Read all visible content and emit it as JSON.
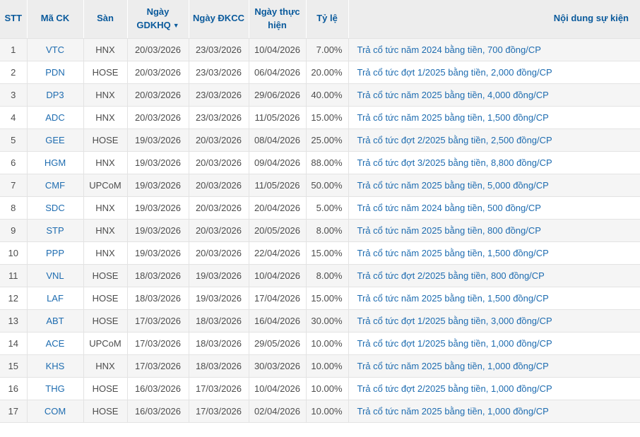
{
  "table": {
    "sort_icon": "▼",
    "columns": [
      {
        "key": "stt",
        "label": "STT",
        "sortable": false,
        "sorted": false
      },
      {
        "key": "ma_ck",
        "label": "Mã CK",
        "sortable": true,
        "sorted": false
      },
      {
        "key": "san",
        "label": "Sàn",
        "sortable": true,
        "sorted": false
      },
      {
        "key": "gdkhq",
        "label": "Ngày GDKHQ",
        "sortable": true,
        "sorted": true
      },
      {
        "key": "dkcc",
        "label": "Ngày ĐKCC",
        "sortable": true,
        "sorted": false
      },
      {
        "key": "thuc_hien",
        "label": "Ngày thực hiện",
        "sortable": true,
        "sorted": false
      },
      {
        "key": "ty_le",
        "label": "Tỷ lệ",
        "sortable": true,
        "sorted": false
      },
      {
        "key": "noi_dung",
        "label": "Nội dung sự kiện",
        "sortable": true,
        "sorted": false
      }
    ],
    "rows": [
      [
        "1",
        "VTC",
        "HNX",
        "20/03/2026",
        "23/03/2026",
        "10/04/2026",
        "7.00%",
        "Trả cổ tức năm 2024 bằng tiền, 700 đồng/CP"
      ],
      [
        "2",
        "PDN",
        "HOSE",
        "20/03/2026",
        "23/03/2026",
        "06/04/2026",
        "20.00%",
        "Trả cổ tức đợt 1/2025 bằng tiền, 2,000 đồng/CP"
      ],
      [
        "3",
        "DP3",
        "HNX",
        "20/03/2026",
        "23/03/2026",
        "29/06/2026",
        "40.00%",
        "Trả cổ tức năm 2025 bằng tiền, 4,000 đồng/CP"
      ],
      [
        "4",
        "ADC",
        "HNX",
        "20/03/2026",
        "23/03/2026",
        "11/05/2026",
        "15.00%",
        "Trả cổ tức năm 2025 bằng tiền, 1,500 đồng/CP"
      ],
      [
        "5",
        "GEE",
        "HOSE",
        "19/03/2026",
        "20/03/2026",
        "08/04/2026",
        "25.00%",
        "Trả cổ tức đợt 2/2025 bằng tiền, 2,500 đồng/CP"
      ],
      [
        "6",
        "HGM",
        "HNX",
        "19/03/2026",
        "20/03/2026",
        "09/04/2026",
        "88.00%",
        "Trả cổ tức đợt 3/2025 bằng tiền, 8,800 đồng/CP"
      ],
      [
        "7",
        "CMF",
        "UPCoM",
        "19/03/2026",
        "20/03/2026",
        "11/05/2026",
        "50.00%",
        "Trả cổ tức năm 2025 bằng tiền, 5,000 đồng/CP"
      ],
      [
        "8",
        "SDC",
        "HNX",
        "19/03/2026",
        "20/03/2026",
        "20/04/2026",
        "5.00%",
        "Trả cổ tức năm 2024 bằng tiền, 500 đồng/CP"
      ],
      [
        "9",
        "STP",
        "HNX",
        "19/03/2026",
        "20/03/2026",
        "20/05/2026",
        "8.00%",
        "Trả cổ tức năm 2025 bằng tiền, 800 đồng/CP"
      ],
      [
        "10",
        "PPP",
        "HNX",
        "19/03/2026",
        "20/03/2026",
        "22/04/2026",
        "15.00%",
        "Trả cổ tức năm 2025 bằng tiền, 1,500 đồng/CP"
      ],
      [
        "11",
        "VNL",
        "HOSE",
        "18/03/2026",
        "19/03/2026",
        "10/04/2026",
        "8.00%",
        "Trả cổ tức đợt 2/2025 bằng tiền, 800 đồng/CP"
      ],
      [
        "12",
        "LAF",
        "HOSE",
        "18/03/2026",
        "19/03/2026",
        "17/04/2026",
        "15.00%",
        "Trả cổ tức năm 2025 bằng tiền, 1,500 đồng/CP"
      ],
      [
        "13",
        "ABT",
        "HOSE",
        "17/03/2026",
        "18/03/2026",
        "16/04/2026",
        "30.00%",
        "Trả cổ tức đợt 1/2025 bằng tiền, 3,000 đồng/CP"
      ],
      [
        "14",
        "ACE",
        "UPCoM",
        "17/03/2026",
        "18/03/2026",
        "29/05/2026",
        "10.00%",
        "Trả cổ tức đợt 1/2025 bằng tiền, 1,000 đồng/CP"
      ],
      [
        "15",
        "KHS",
        "HNX",
        "17/03/2026",
        "18/03/2026",
        "30/03/2026",
        "10.00%",
        "Trả cổ tức năm 2025 bằng tiền, 1,000 đồng/CP"
      ],
      [
        "16",
        "THG",
        "HOSE",
        "16/03/2026",
        "17/03/2026",
        "10/04/2026",
        "10.00%",
        "Trả cổ tức đợt 2/2025 bằng tiền, 1,000 đồng/CP"
      ],
      [
        "17",
        "COM",
        "HOSE",
        "16/03/2026",
        "17/03/2026",
        "02/04/2026",
        "10.00%",
        "Trả cổ tức năm 2025 bằng tiền, 1,000 đồng/CP"
      ]
    ]
  },
  "colors": {
    "header_background": "#ededed",
    "header_text": "#0a5a9c",
    "link_blue": "#1e6cb0",
    "body_text": "#4d4d4d",
    "row_stripe": "#f5f5f5",
    "border": "#e3e3e3"
  }
}
